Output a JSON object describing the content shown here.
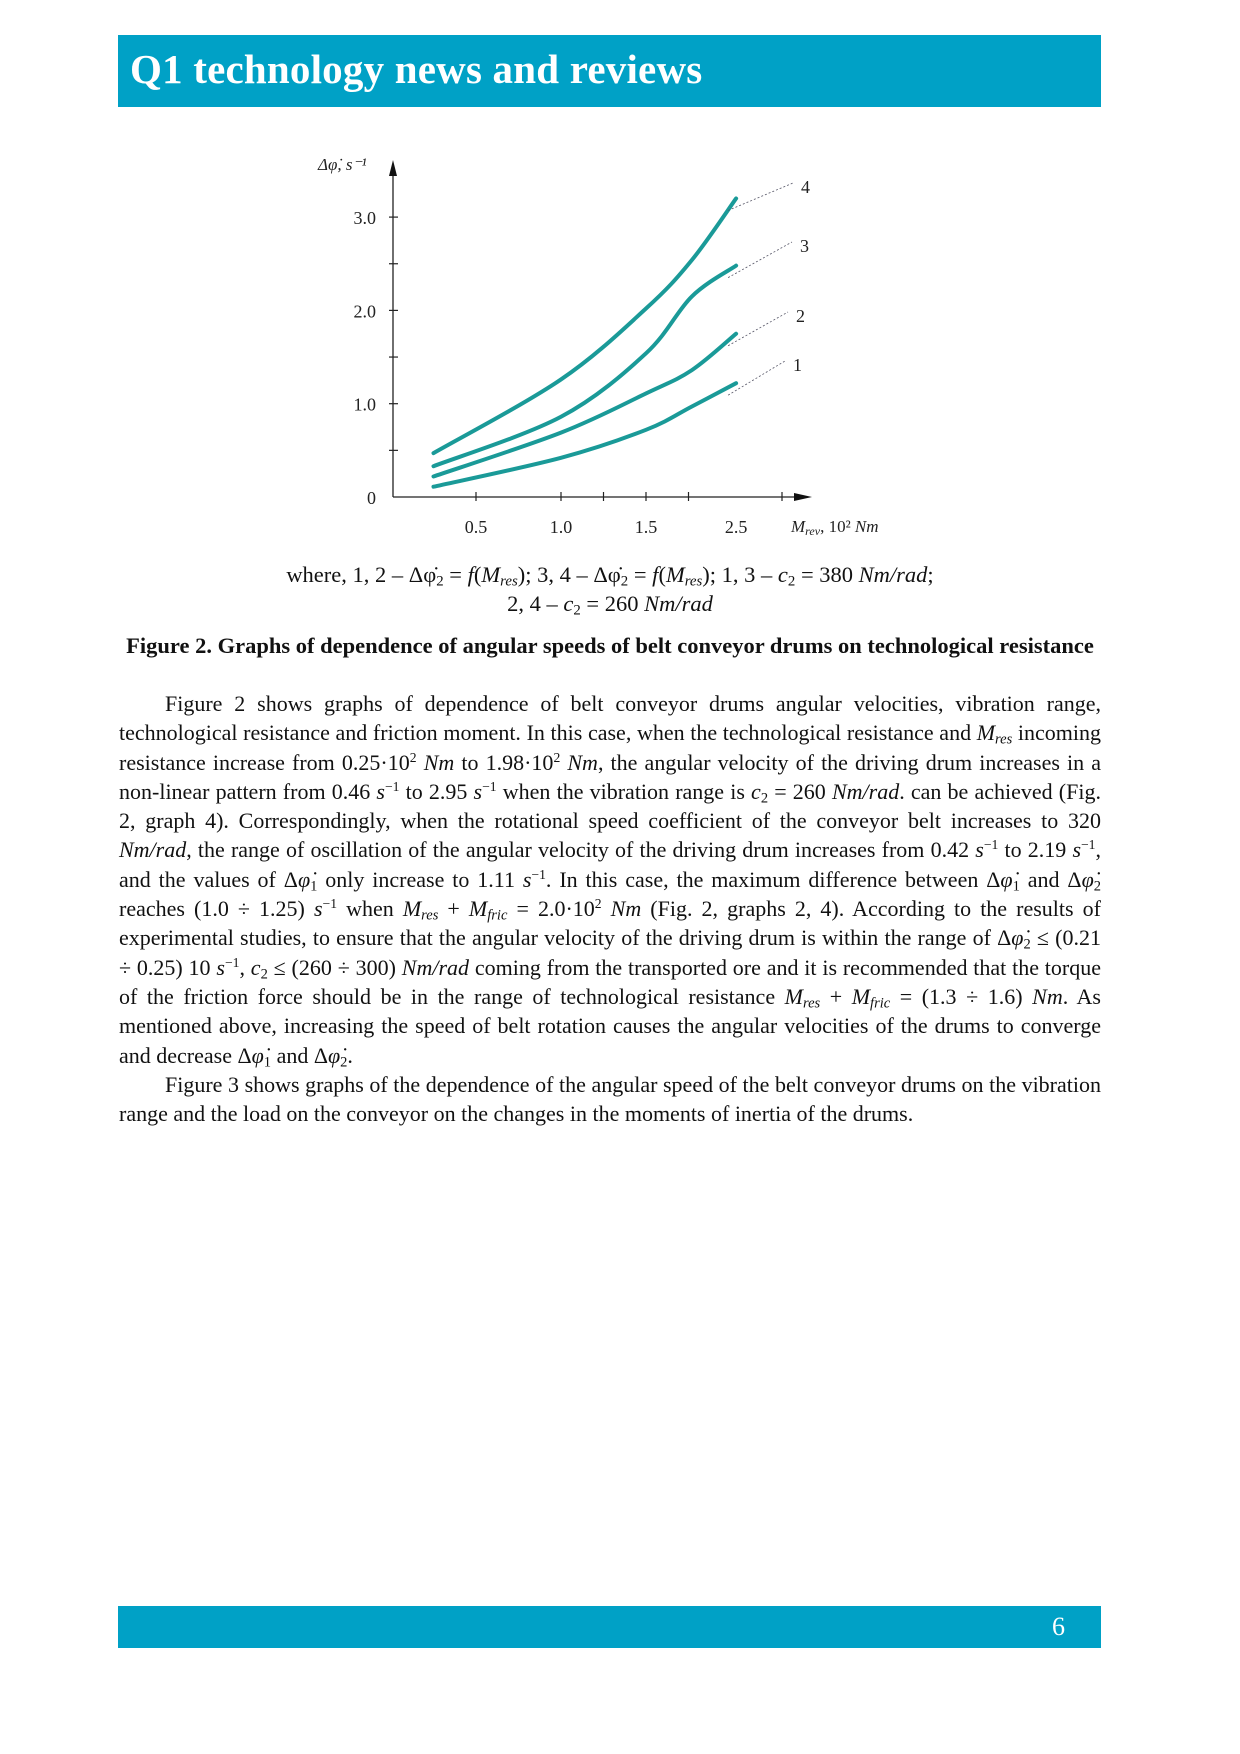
{
  "header": {
    "title": "Q1 technology news and reviews",
    "color": "#00a1c6"
  },
  "chart_data": {
    "type": "line",
    "ylabel": "Δφ̇, s⁻¹",
    "xlabel_parts": {
      "main": "M",
      "sub": "rev",
      "rest": ", 10² ",
      "unit": "Nm"
    },
    "ylim": [
      0,
      3.4
    ],
    "y_ticks": [
      0.5,
      1.0,
      1.5,
      2.0,
      2.5,
      3.0
    ],
    "y_tick_labels": [
      {
        "at": 0,
        "label": "0"
      },
      {
        "at": 1.0,
        "label": "1.0"
      },
      {
        "at": 2.0,
        "label": "2.0"
      },
      {
        "at": 3.0,
        "label": "3.0"
      }
    ],
    "x_ticks": [
      0.5,
      1.0,
      1.25,
      1.5,
      1.75,
      2.3
    ],
    "x_tick_labels": [
      {
        "at": 0.5,
        "label": "0.5"
      },
      {
        "at": 1.0,
        "label": "1.0"
      },
      {
        "at": 1.5,
        "label": "1.5"
      },
      {
        "at": 2.03,
        "label": "2.5"
      }
    ],
    "grid": false,
    "line_color": "#1a9a98",
    "x": [
      0.25,
      1.0,
      1.5,
      1.77,
      2.03
    ],
    "series": [
      {
        "name": "1",
        "values": [
          0.11,
          0.42,
          0.72,
          0.97,
          1.22
        ]
      },
      {
        "name": "2",
        "values": [
          0.22,
          0.69,
          1.11,
          1.36,
          1.75
        ]
      },
      {
        "name": "3",
        "values": [
          0.33,
          0.86,
          1.54,
          2.15,
          2.48
        ]
      },
      {
        "name": "4",
        "values": [
          0.47,
          1.26,
          2.02,
          2.54,
          3.2
        ]
      }
    ]
  },
  "legend_note": [
    [
      {
        "t": "where, 1, 2 – Δφ̇"
      },
      {
        "t": "2",
        "s": "sub"
      },
      {
        "t": " = "
      },
      {
        "t": "f",
        "s": "i"
      },
      {
        "t": "("
      },
      {
        "t": "M",
        "s": "i"
      },
      {
        "t": "res",
        "s": "sub i"
      },
      {
        "t": "); 3, 4 – Δφ̇"
      },
      {
        "t": "2",
        "s": "sub"
      },
      {
        "t": " = "
      },
      {
        "t": "f",
        "s": "i"
      },
      {
        "t": "("
      },
      {
        "t": "M",
        "s": "i"
      },
      {
        "t": "res",
        "s": "sub i"
      },
      {
        "t": "); 1, 3 – "
      },
      {
        "t": "c",
        "s": "i"
      },
      {
        "t": "2",
        "s": "sub"
      },
      {
        "t": " = 380 "
      },
      {
        "t": "Nm/rad",
        "s": "i"
      },
      {
        "t": ";"
      }
    ],
    [
      {
        "t": "2, 4 – "
      },
      {
        "t": "c",
        "s": "i"
      },
      {
        "t": "2",
        "s": "sub"
      },
      {
        "t": " = 260 "
      },
      {
        "t": "Nm/rad",
        "s": "i"
      }
    ]
  ],
  "caption": "Figure 2. Graphs of dependence of angular speeds of belt conveyor drums on technological resistance",
  "body": {
    "paragraphs": [
      [
        {
          "t": "Figure 2 shows graphs of dependence of belt conveyor drums angular velocities, vibration range, technological resistance and friction moment. In this case, when the technological resistance and "
        },
        {
          "t": "M",
          "s": "i"
        },
        {
          "t": "res",
          "s": "sub i"
        },
        {
          "t": " incoming resistance increase from 0.25·10"
        },
        {
          "t": "2",
          "s": "sup"
        },
        {
          "t": " "
        },
        {
          "t": "Nm",
          "s": "i"
        },
        {
          "t": " to 1.98·10"
        },
        {
          "t": "2",
          "s": "sup"
        },
        {
          "t": " "
        },
        {
          "t": "Nm",
          "s": "i"
        },
        {
          "t": ", the angular velocity of the driving drum increases in a non-linear pattern from 0.46 "
        },
        {
          "t": "s",
          "s": "i"
        },
        {
          "t": "−1",
          "s": "sup"
        },
        {
          "t": " to 2.95 "
        },
        {
          "t": "s",
          "s": "i"
        },
        {
          "t": "−1",
          "s": "sup"
        },
        {
          "t": " when the vibration range is "
        },
        {
          "t": "c",
          "s": "i"
        },
        {
          "t": "2",
          "s": "sub"
        },
        {
          "t": " = 260 "
        },
        {
          "t": "Nm/rad",
          "s": "i"
        },
        {
          "t": ". can be achieved (Fig. 2, graph 4). Correspondingly, when the rotational speed coefficient of the conveyor belt increases to 320 "
        },
        {
          "t": "Nm/rad",
          "s": "i"
        },
        {
          "t": ", the range of oscillation of the angular velocity of the driving drum increases from 0.42 "
        },
        {
          "t": "s",
          "s": "i"
        },
        {
          "t": "−1",
          "s": "sup"
        },
        {
          "t": " to 2.19 "
        },
        {
          "t": "s",
          "s": "i"
        },
        {
          "t": "−1",
          "s": "sup"
        },
        {
          "t": ", and the values of Δ"
        },
        {
          "t": "φ̇",
          "s": "i"
        },
        {
          "t": "1",
          "s": "sub"
        },
        {
          "t": " only increase to 1.11 "
        },
        {
          "t": "s",
          "s": "i"
        },
        {
          "t": "−1",
          "s": "sup"
        },
        {
          "t": ". In this case, the maximum difference between Δ"
        },
        {
          "t": "φ̇",
          "s": "i"
        },
        {
          "t": "1",
          "s": "sub"
        },
        {
          "t": " and Δ"
        },
        {
          "t": "φ̇",
          "s": "i"
        },
        {
          "t": "2",
          "s": "sub"
        },
        {
          "t": " reaches (1.0 ÷ 1.25) "
        },
        {
          "t": "s",
          "s": "i"
        },
        {
          "t": "−1",
          "s": "sup"
        },
        {
          "t": " when "
        },
        {
          "t": "M",
          "s": "i"
        },
        {
          "t": "res",
          "s": "sub i"
        },
        {
          "t": " + "
        },
        {
          "t": "M",
          "s": "i"
        },
        {
          "t": "fric",
          "s": "sub i"
        },
        {
          "t": " = 2.0·10"
        },
        {
          "t": "2",
          "s": "sup"
        },
        {
          "t": " "
        },
        {
          "t": "Nm",
          "s": "i"
        },
        {
          "t": " (Fig. 2, graphs 2, 4). According to the results of experimental studies, to ensure that the angular velocity of the driving drum is within the range of Δ"
        },
        {
          "t": "φ̇",
          "s": "i"
        },
        {
          "t": "2",
          "s": "sub"
        },
        {
          "t": " ≤ (0.21 ÷ 0.25) 10 "
        },
        {
          "t": "s",
          "s": "i"
        },
        {
          "t": "−1",
          "s": "sup"
        },
        {
          "t": ", "
        },
        {
          "t": "c",
          "s": "i"
        },
        {
          "t": "2",
          "s": "sub"
        },
        {
          "t": " ≤ (260 ÷ 300) "
        },
        {
          "t": "Nm/rad",
          "s": "i"
        },
        {
          "t": " coming from the transported ore and it is recommended that the torque of the friction force should be in the range of technological resistance "
        },
        {
          "t": "M",
          "s": "i"
        },
        {
          "t": "res",
          "s": "sub i"
        },
        {
          "t": " + "
        },
        {
          "t": "M",
          "s": "i"
        },
        {
          "t": "fric",
          "s": "sub i"
        },
        {
          "t": " = (1.3 ÷ 1.6) "
        },
        {
          "t": "Nm",
          "s": "i"
        },
        {
          "t": ". As mentioned above, increasing the speed of belt rotation causes the angular velocities of the drums to converge and decrease Δ"
        },
        {
          "t": "φ̇",
          "s": "i"
        },
        {
          "t": "1",
          "s": "sub"
        },
        {
          "t": " and Δ"
        },
        {
          "t": "φ̇",
          "s": "i"
        },
        {
          "t": "2",
          "s": "sub"
        },
        {
          "t": "."
        }
      ],
      [
        {
          "t": "Figure 3 shows graphs of the dependence of the angular speed of the belt conveyor drums on the vibration range and the load on the conveyor on the changes in the moments of inertia of the drums."
        }
      ]
    ]
  },
  "footer": {
    "page_number": "6"
  }
}
